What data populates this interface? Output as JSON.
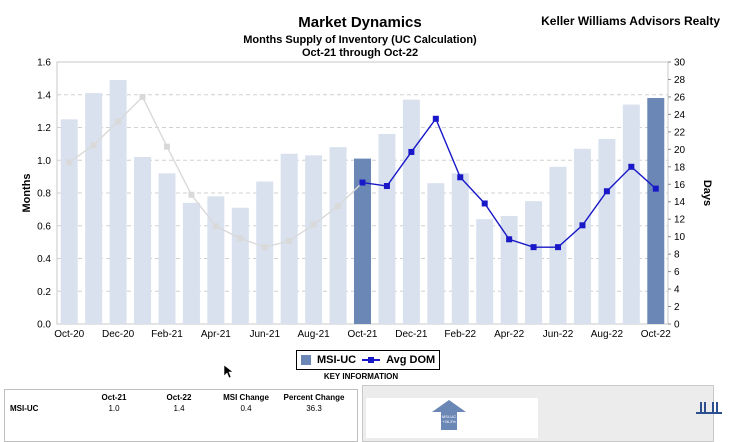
{
  "header": {
    "title": "Market Dynamics",
    "subtitle": "Months Supply of Inventory (UC Calculation)",
    "date_range": "Oct-21 through Oct-22",
    "brand": "Keller Williams Advisors Realty"
  },
  "legend": {
    "series1": "MSI-UC",
    "series2": "Avg DOM",
    "caption": "KEY INFORMATION"
  },
  "colors": {
    "bar_light": "#d9e1ee",
    "bar_highlight": "#6a87b5",
    "line_active": "#1818c8",
    "line_faded": "#d9d9d9"
  },
  "chart_data": {
    "type": "bar",
    "categories": [
      "Oct-20",
      "Nov-20",
      "Dec-20",
      "Jan-21",
      "Feb-21",
      "Mar-21",
      "Apr-21",
      "May-21",
      "Jun-21",
      "Jul-21",
      "Aug-21",
      "Sep-21",
      "Oct-21",
      "Nov-21",
      "Dec-21",
      "Jan-22",
      "Feb-22",
      "Mar-22",
      "Apr-22",
      "May-22",
      "Jun-22",
      "Jul-22",
      "Aug-22",
      "Sep-22",
      "Oct-22"
    ],
    "x_tick_labels": [
      "Oct-20",
      "Dec-20",
      "Feb-21",
      "Apr-21",
      "Jun-21",
      "Aug-21",
      "Oct-21",
      "Dec-21",
      "Feb-22",
      "Apr-22",
      "Jun-22",
      "Aug-22",
      "Oct-22"
    ],
    "series": [
      {
        "name": "MSI-UC",
        "axis": "left",
        "values": [
          1.25,
          1.41,
          1.49,
          1.02,
          0.92,
          0.74,
          0.78,
          0.71,
          0.87,
          1.04,
          1.03,
          1.08,
          1.01,
          1.16,
          1.37,
          0.86,
          0.92,
          0.64,
          0.66,
          0.75,
          0.96,
          1.07,
          1.13,
          1.34,
          1.38
        ],
        "highlighted_indices": [
          12,
          24
        ]
      },
      {
        "name": "Avg DOM",
        "axis": "right",
        "values": [
          18.5,
          20.5,
          23.2,
          26.0,
          20.3,
          14.8,
          11.2,
          9.8,
          8.8,
          9.5,
          11.4,
          13.5,
          16.2,
          15.8,
          19.7,
          23.5,
          16.8,
          13.8,
          9.7,
          8.8,
          8.8,
          11.3,
          15.2,
          18.0,
          15.5
        ],
        "faded_before_index": 12
      }
    ],
    "ylabel": "Months",
    "ylabel_right": "Days",
    "ylim": [
      0,
      1.6
    ],
    "y_ticks": [
      "0.0",
      "0.2",
      "0.4",
      "0.6",
      "0.8",
      "1.0",
      "1.2",
      "1.4",
      "1.6"
    ],
    "ylim_right": [
      0,
      30
    ],
    "y_ticks_right": [
      "0",
      "2",
      "4",
      "6",
      "8",
      "10",
      "12",
      "14",
      "16",
      "18",
      "20",
      "22",
      "24",
      "26",
      "28",
      "30"
    ],
    "grid": "horizontal dashed"
  },
  "table": {
    "headers": [
      "",
      "Oct-21",
      "Oct-22",
      "MSI Change",
      "Percent Change"
    ],
    "rows": [
      {
        "label": "MSI-UC",
        "cells": [
          "1.0",
          "1.4",
          "0.4",
          "36.3"
        ]
      }
    ]
  },
  "badge": {
    "icon": "up-arrow-icon",
    "line1": "MSI-UC",
    "line2": "+36.3%"
  }
}
